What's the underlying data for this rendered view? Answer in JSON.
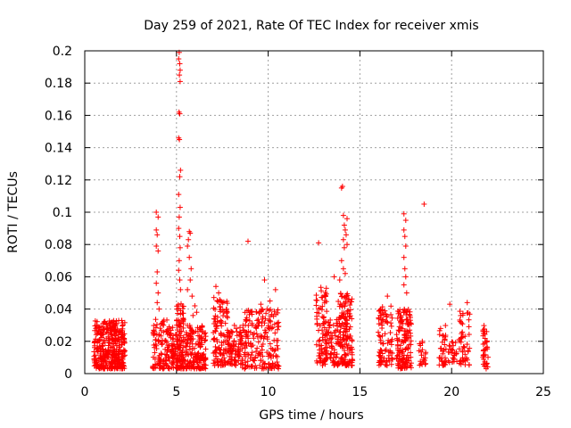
{
  "chart_data": {
    "type": "scatter",
    "title": "Day 259 of 2021, Rate Of TEC Index for receiver xmis",
    "xlabel": "GPS time / hours",
    "ylabel": "ROTI / TECUs",
    "xlim": [
      0,
      25
    ],
    "ylim": [
      0,
      0.2
    ],
    "xticks": [
      "0",
      "5",
      "10",
      "15",
      "20",
      "25"
    ],
    "yticks": [
      "0",
      "0.02",
      "0.04",
      "0.06",
      "0.08",
      "0.1",
      "0.12",
      "0.14",
      "0.16",
      "0.18",
      "0.2"
    ],
    "grid": true,
    "marker": "plus",
    "color": "#ff0000",
    "clusters": [
      {
        "x": [
          0.5,
          2.2
        ],
        "ymin": 0.003,
        "ymax": 0.033,
        "n": 380
      },
      {
        "x": [
          3.7,
          4.5
        ],
        "ymin": 0.003,
        "ymax": 0.035,
        "n": 90
      },
      {
        "x": [
          4.5,
          5.0
        ],
        "ymin": 0.003,
        "ymax": 0.03,
        "n": 60
      },
      {
        "x": [
          5.0,
          5.4
        ],
        "ymin": 0.003,
        "ymax": 0.045,
        "n": 110
      },
      {
        "x": [
          5.4,
          6.6
        ],
        "ymin": 0.003,
        "ymax": 0.03,
        "n": 170
      },
      {
        "x": [
          7.0,
          7.8
        ],
        "ymin": 0.005,
        "ymax": 0.048,
        "n": 110
      },
      {
        "x": [
          7.8,
          8.6
        ],
        "ymin": 0.005,
        "ymax": 0.03,
        "n": 90
      },
      {
        "x": [
          8.6,
          10.6
        ],
        "ymin": 0.003,
        "ymax": 0.04,
        "n": 200
      },
      {
        "x": [
          12.6,
          13.2
        ],
        "ymin": 0.005,
        "ymax": 0.055,
        "n": 90
      },
      {
        "x": [
          13.2,
          13.8
        ],
        "ymin": 0.005,
        "ymax": 0.035,
        "n": 60
      },
      {
        "x": [
          13.8,
          14.6
        ],
        "ymin": 0.005,
        "ymax": 0.05,
        "n": 150
      },
      {
        "x": [
          16.0,
          16.8
        ],
        "ymin": 0.005,
        "ymax": 0.042,
        "n": 90
      },
      {
        "x": [
          17.0,
          17.8
        ],
        "ymin": 0.003,
        "ymax": 0.04,
        "n": 150
      },
      {
        "x": [
          18.2,
          18.6
        ],
        "ymin": 0.005,
        "ymax": 0.02,
        "n": 20
      },
      {
        "x": [
          19.3,
          19.7
        ],
        "ymin": 0.005,
        "ymax": 0.03,
        "n": 35
      },
      {
        "x": [
          19.8,
          20.3
        ],
        "ymin": 0.005,
        "ymax": 0.02,
        "n": 25
      },
      {
        "x": [
          20.4,
          21.0
        ],
        "ymin": 0.005,
        "ymax": 0.04,
        "n": 50
      },
      {
        "x": [
          21.7,
          22.0
        ],
        "ymin": 0.003,
        "ymax": 0.032,
        "n": 40
      }
    ],
    "points": [
      [
        5.15,
        0.199
      ],
      [
        5.12,
        0.195
      ],
      [
        5.18,
        0.192
      ],
      [
        5.2,
        0.188
      ],
      [
        5.16,
        0.185
      ],
      [
        5.2,
        0.181
      ],
      [
        5.14,
        0.162
      ],
      [
        5.18,
        0.161
      ],
      [
        5.12,
        0.146
      ],
      [
        5.16,
        0.145
      ],
      [
        5.22,
        0.126
      ],
      [
        5.18,
        0.122
      ],
      [
        5.12,
        0.111
      ],
      [
        5.2,
        0.103
      ],
      [
        5.15,
        0.097
      ],
      [
        5.12,
        0.09
      ],
      [
        5.18,
        0.085
      ],
      [
        5.2,
        0.078
      ],
      [
        5.15,
        0.07
      ],
      [
        5.12,
        0.064
      ],
      [
        5.18,
        0.058
      ],
      [
        5.22,
        0.052
      ],
      [
        3.9,
        0.1
      ],
      [
        4.0,
        0.097
      ],
      [
        3.9,
        0.089
      ],
      [
        3.95,
        0.086
      ],
      [
        3.9,
        0.079
      ],
      [
        4.0,
        0.076
      ],
      [
        3.95,
        0.063
      ],
      [
        3.9,
        0.056
      ],
      [
        4.0,
        0.05
      ],
      [
        3.95,
        0.044
      ],
      [
        4.05,
        0.04
      ],
      [
        5.7,
        0.088
      ],
      [
        5.75,
        0.087
      ],
      [
        5.65,
        0.083
      ],
      [
        5.6,
        0.079
      ],
      [
        5.7,
        0.072
      ],
      [
        5.8,
        0.065
      ],
      [
        5.75,
        0.058
      ],
      [
        5.6,
        0.052
      ],
      [
        5.85,
        0.048
      ],
      [
        6.0,
        0.042
      ],
      [
        6.1,
        0.038
      ],
      [
        5.9,
        0.036
      ],
      [
        7.15,
        0.054
      ],
      [
        7.3,
        0.05
      ],
      [
        7.4,
        0.045
      ],
      [
        8.9,
        0.082
      ],
      [
        9.8,
        0.058
      ],
      [
        10.4,
        0.052
      ],
      [
        10.1,
        0.045
      ],
      [
        9.6,
        0.043
      ],
      [
        12.75,
        0.081
      ],
      [
        14.05,
        0.116
      ],
      [
        14.0,
        0.115
      ],
      [
        14.1,
        0.098
      ],
      [
        14.15,
        0.092
      ],
      [
        14.2,
        0.089
      ],
      [
        14.25,
        0.086
      ],
      [
        14.1,
        0.083
      ],
      [
        14.3,
        0.08
      ],
      [
        14.15,
        0.078
      ],
      [
        14.3,
        0.096
      ],
      [
        14.0,
        0.07
      ],
      [
        14.1,
        0.065
      ],
      [
        13.9,
        0.058
      ],
      [
        14.2,
        0.062
      ],
      [
        13.6,
        0.06
      ],
      [
        17.4,
        0.099
      ],
      [
        17.5,
        0.095
      ],
      [
        17.4,
        0.089
      ],
      [
        17.45,
        0.085
      ],
      [
        17.5,
        0.079
      ],
      [
        17.4,
        0.072
      ],
      [
        17.45,
        0.065
      ],
      [
        17.5,
        0.06
      ],
      [
        17.4,
        0.055
      ],
      [
        17.55,
        0.05
      ],
      [
        18.5,
        0.105
      ],
      [
        19.9,
        0.043
      ],
      [
        20.85,
        0.044
      ],
      [
        16.5,
        0.048
      ],
      [
        18.4,
        0.02
      ]
    ]
  }
}
